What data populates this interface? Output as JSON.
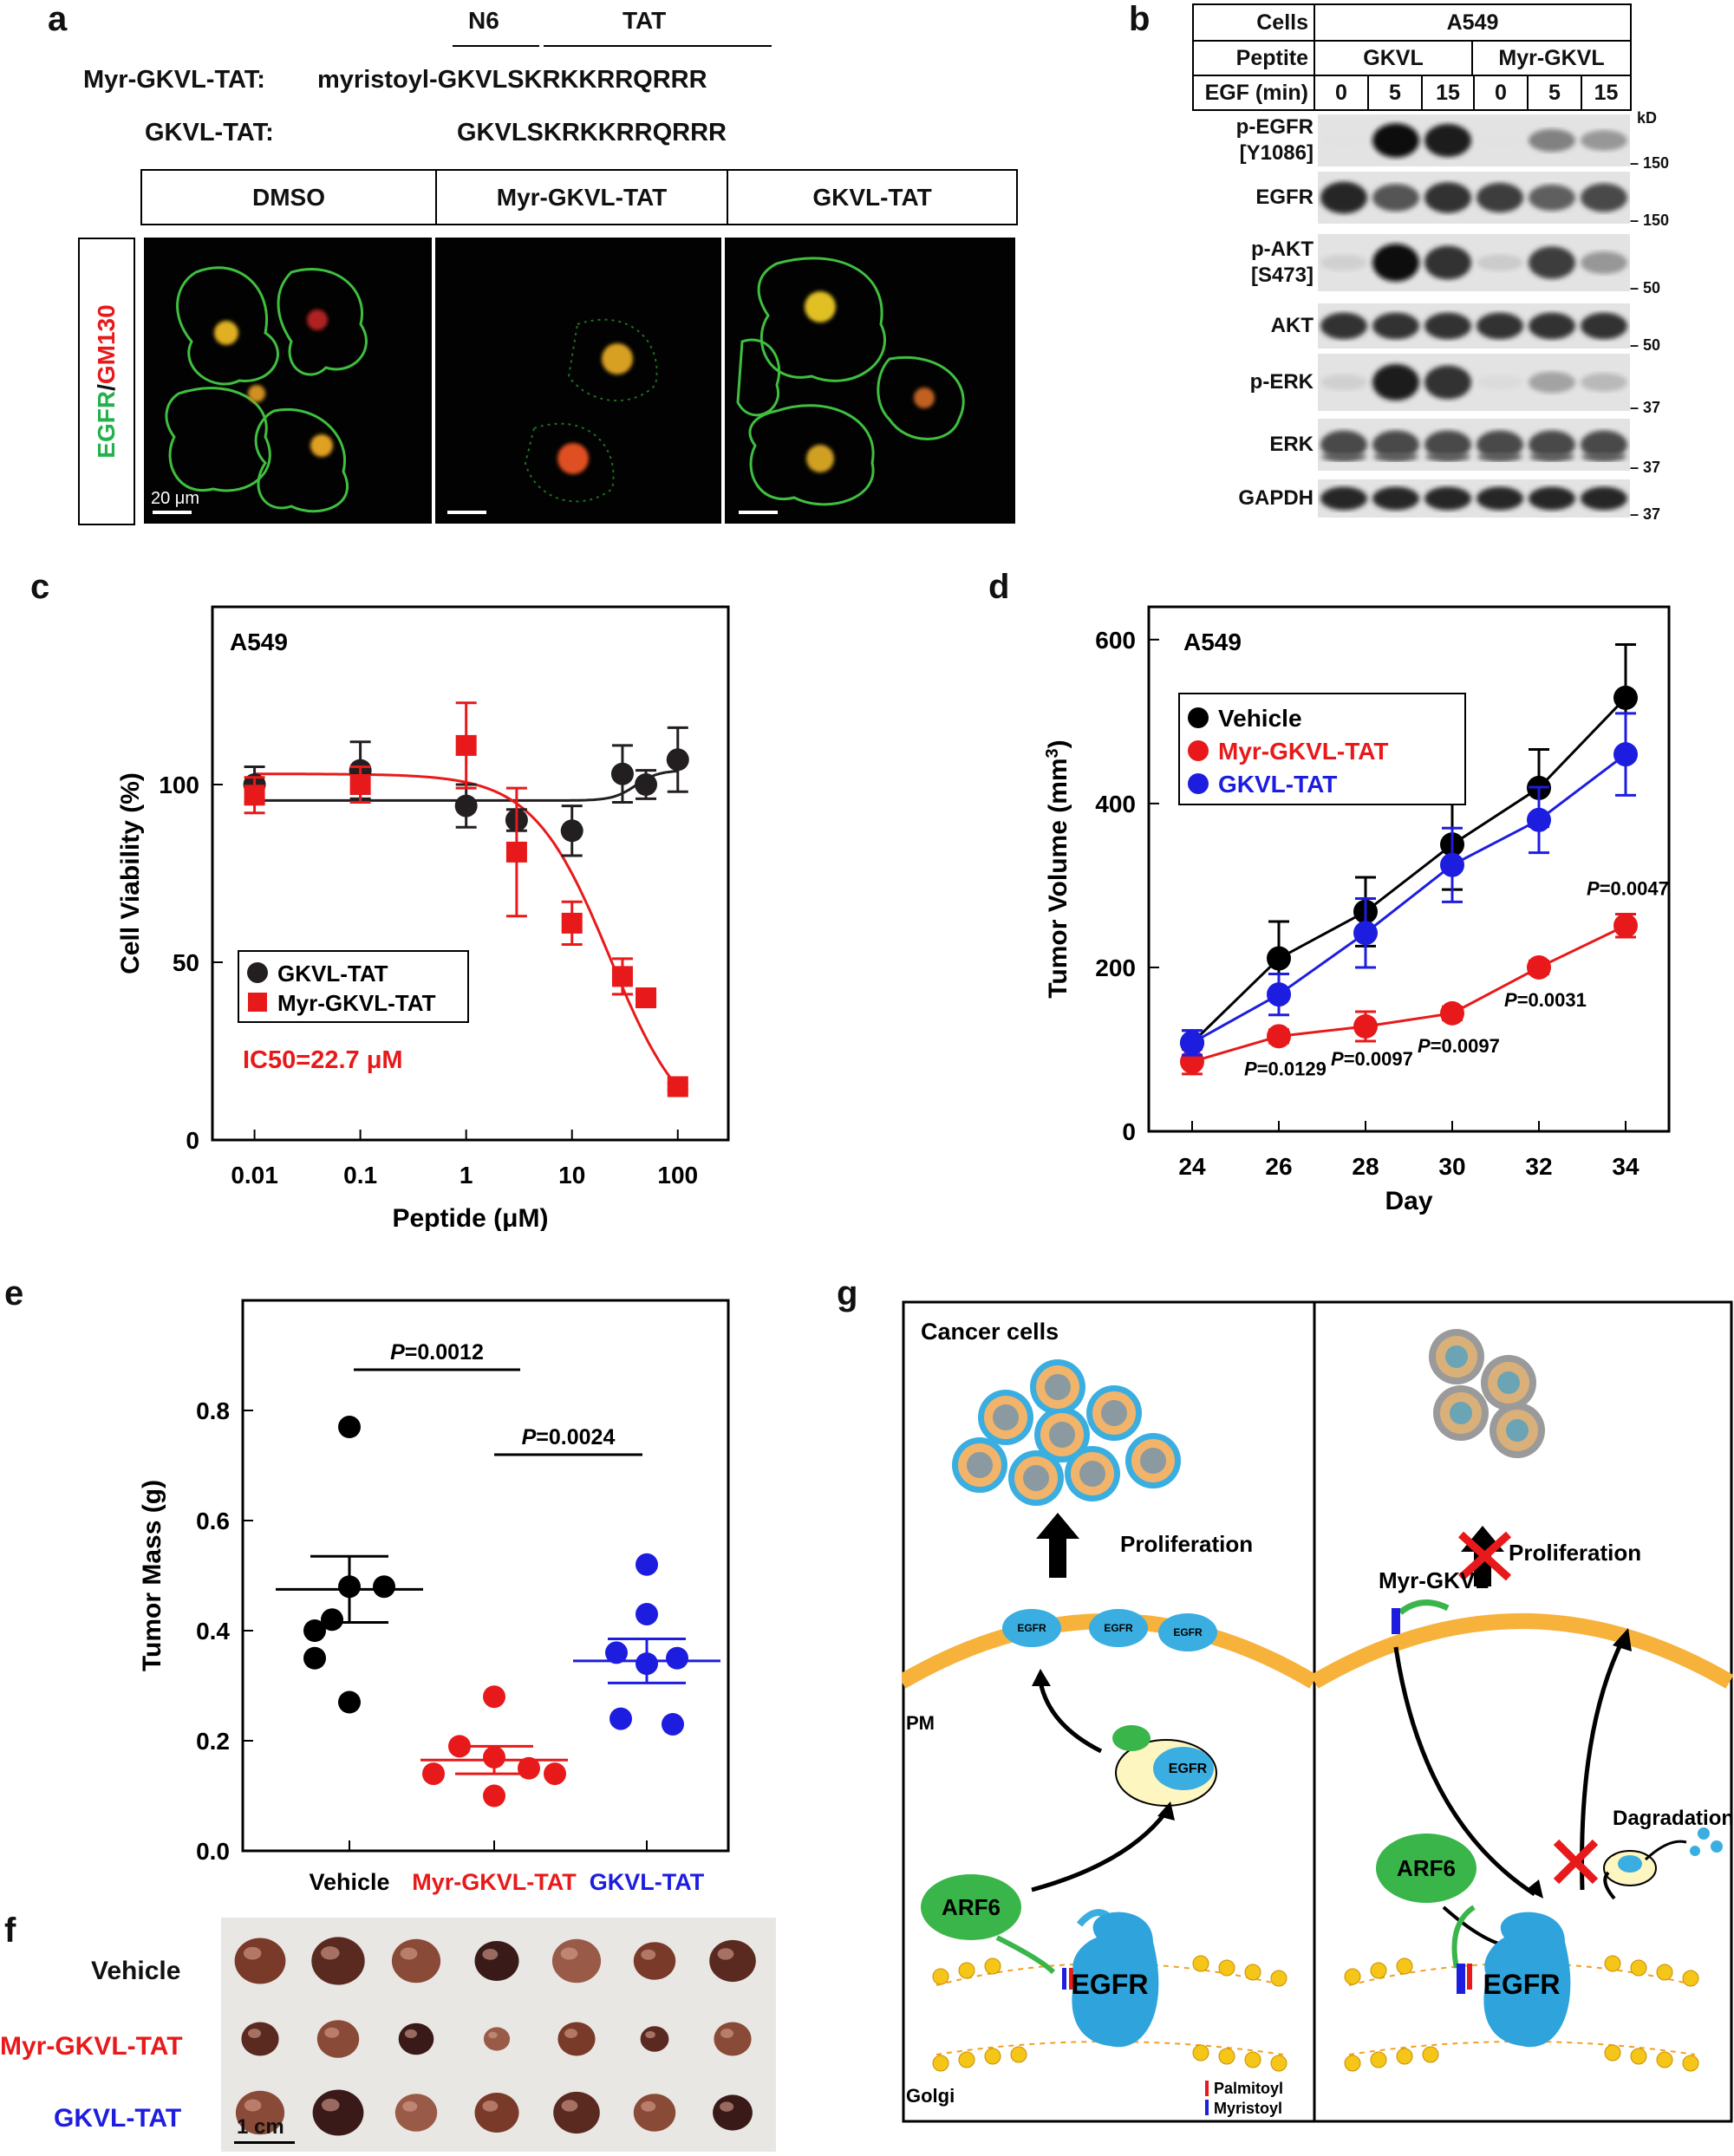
{
  "panels": {
    "a": "a",
    "b": "b",
    "c": "c",
    "d": "d",
    "e": "e",
    "f": "f",
    "g": "g"
  },
  "panel_a": {
    "header_n6": "N6",
    "header_tat": "TAT",
    "rows": [
      {
        "label": "Myr-GKVL-TAT:",
        "prefix": "myristoyl-",
        "n6": "GKVLS",
        "tat": "KRKKRRQRRR"
      },
      {
        "label": "GKVL-TAT:",
        "prefix": "",
        "n6": "GKVLS",
        "tat": "KRKKRRQRRR"
      }
    ],
    "columns": [
      "DMSO",
      "Myr-GKVL-TAT",
      "GKVL-TAT"
    ],
    "side_label_egfr": "EGFR",
    "side_label_slash": "/",
    "side_label_gm130": "GM130",
    "scale_bar": "20 μm"
  },
  "panel_b": {
    "row_cells_label": "Cells",
    "row_cells_value": "A549",
    "row_peptide_label": "Peptite",
    "peptides": [
      "GKVL",
      "Myr-GKVL"
    ],
    "row_egf_label": "EGF (min)",
    "egf_times": [
      "0",
      "5",
      "15",
      "0",
      "5",
      "15"
    ],
    "kd_label": "kD",
    "blots": [
      {
        "label": "p-EGFR [Y1086]",
        "marker": "150",
        "intensities": [
          0.02,
          0.95,
          0.9,
          0.02,
          0.45,
          0.35
        ]
      },
      {
        "label": "EGFR",
        "marker": "150",
        "intensities": [
          0.85,
          0.65,
          0.8,
          0.75,
          0.6,
          0.7
        ]
      },
      {
        "label": "p-AKT [S473]",
        "marker": "50",
        "intensities": [
          0.1,
          0.95,
          0.8,
          0.12,
          0.75,
          0.35
        ]
      },
      {
        "label": "AKT",
        "marker": "50",
        "intensities": [
          0.8,
          0.8,
          0.8,
          0.8,
          0.8,
          0.8
        ]
      },
      {
        "label": "p-ERK",
        "marker": "37",
        "intensities": [
          0.1,
          0.9,
          0.8,
          0.05,
          0.3,
          0.2
        ]
      },
      {
        "label": "ERK",
        "marker": "37",
        "intensities": [
          0.7,
          0.7,
          0.7,
          0.7,
          0.7,
          0.7
        ]
      },
      {
        "label": "GAPDH",
        "marker": "37",
        "intensities": [
          0.85,
          0.85,
          0.85,
          0.85,
          0.85,
          0.85
        ]
      }
    ]
  },
  "chart_data": [
    {
      "id": "c",
      "type": "scatter",
      "title": "A549",
      "xlabel": "Peptide (μM)",
      "ylabel": "Cell Viability (%)",
      "xscale": "log",
      "xlim": [
        0.004,
        300
      ],
      "ylim": [
        0,
        150
      ],
      "xticks": [
        0.01,
        0.1,
        1,
        10,
        100
      ],
      "xtick_labels": [
        "0.01",
        "0.1",
        "1",
        "10",
        "100"
      ],
      "yticks": [
        0,
        50,
        100
      ],
      "legend": "bottom-left",
      "annotation": "IC50=22.7 μM",
      "series": [
        {
          "name": "GKVL-TAT",
          "color": "#231f20",
          "marker": "circle",
          "x": [
            0.01,
            0.1,
            1,
            3,
            10,
            30,
            50,
            100
          ],
          "y": [
            100,
            104,
            94,
            90,
            87,
            103,
            100,
            107
          ],
          "err": [
            5,
            8,
            6,
            3,
            7,
            8,
            4,
            9
          ],
          "fit": "flat",
          "fit_params": {
            "bottom": 95.5,
            "top": 104,
            "ec50": 40
          }
        },
        {
          "name": "Myr-GKVL-TAT",
          "color": "#e8191a",
          "marker": "square",
          "x": [
            0.01,
            0.1,
            1,
            3,
            10,
            30,
            50,
            100
          ],
          "y": [
            97,
            100,
            111,
            81,
            61,
            46,
            40,
            15
          ],
          "err": [
            5,
            5,
            12,
            18,
            6,
            5,
            2,
            1
          ],
          "fit": "sigmoid",
          "fit_params": {
            "top": 103,
            "ic50": 22.7,
            "hill": 1.2
          }
        }
      ]
    },
    {
      "id": "d",
      "type": "line",
      "title": "A549",
      "xlabel": "Day",
      "ylabel": "Tumor Volume (mm",
      "ylabel_sup": "3",
      "ylabel_close": ")",
      "xlim": [
        23,
        35
      ],
      "ylim": [
        0,
        640
      ],
      "xticks": [
        24,
        26,
        28,
        30,
        32,
        34
      ],
      "yticks": [
        0,
        200,
        400,
        600
      ],
      "legend": "top-left",
      "series": [
        {
          "name": "Vehicle",
          "color": "#000000",
          "x": [
            24,
            26,
            28,
            30,
            32,
            34
          ],
          "y": [
            108,
            211,
            268,
            350,
            419,
            529
          ],
          "err": [
            15,
            45,
            42,
            55,
            47,
            65
          ]
        },
        {
          "name": "Myr-GKVL-TAT",
          "color": "#e8191a",
          "x": [
            24,
            26,
            28,
            30,
            32,
            34
          ],
          "y": [
            85,
            116,
            128,
            144,
            200,
            251
          ],
          "err": [
            15,
            8,
            18,
            8,
            8,
            14
          ]
        },
        {
          "name": "GKVL-TAT",
          "color": "#1d1de0",
          "x": [
            24,
            26,
            28,
            30,
            32,
            34
          ],
          "y": [
            108,
            167,
            242,
            325,
            380,
            460
          ],
          "err": [
            15,
            25,
            42,
            45,
            40,
            50
          ]
        }
      ],
      "pvalues": [
        {
          "day": 26,
          "label": "=0.0129"
        },
        {
          "day": 28,
          "label": "=0.0097"
        },
        {
          "day": 30,
          "label": "=0.0097"
        },
        {
          "day": 32,
          "label": "=0.0031"
        },
        {
          "day": 34,
          "label": "=0.0047"
        }
      ]
    },
    {
      "id": "e",
      "type": "scatter",
      "xlabel": "",
      "ylabel": "Tumor Mass (g)",
      "ylim": [
        0,
        1.0
      ],
      "yticks": [
        0.0,
        0.2,
        0.4,
        0.6,
        0.8
      ],
      "ytick_labels": [
        "0.0",
        "0.2",
        "0.4",
        "0.6",
        "0.8"
      ],
      "categories": [
        "Vehicle",
        "Myr-GKVL-TAT",
        "GKVL-TAT"
      ],
      "colors": [
        "#000000",
        "#e8191a",
        "#1d1de0"
      ],
      "points": [
        [
          0.77,
          0.4,
          0.48,
          0.48,
          0.42,
          0.35,
          0.27
        ],
        [
          0.28,
          0.19,
          0.17,
          0.15,
          0.14,
          0.14,
          0.1
        ],
        [
          0.52,
          0.43,
          0.36,
          0.35,
          0.34,
          0.24,
          0.23
        ]
      ],
      "means": [
        0.475,
        0.165,
        0.345
      ],
      "sems": [
        0.06,
        0.025,
        0.04
      ],
      "comparisons": [
        {
          "from": 0,
          "to": 1,
          "label": "=0.0012"
        },
        {
          "from": 1,
          "to": 2,
          "label": "=0.0024"
        }
      ]
    }
  ],
  "panel_f": {
    "rows": [
      "Vehicle",
      "Myr-GKVL-TAT",
      "GKVL-TAT"
    ],
    "scale": "1 cm",
    "tumor_sizes": [
      [
        0.9,
        0.95,
        0.85,
        0.75,
        0.85,
        0.7,
        0.8
      ],
      [
        0.6,
        0.7,
        0.55,
        0.35,
        0.6,
        0.4,
        0.6
      ],
      [
        0.85,
        0.9,
        0.7,
        0.75,
        0.8,
        0.7,
        0.65
      ]
    ]
  },
  "panel_g": {
    "title": "Cancer cells",
    "proliferation": "Proliferation",
    "pm": "PM",
    "golgi": "Golgi",
    "egfr": "EGFR",
    "arf6": "ARF6",
    "myr_gkvl": "Myr-GKVL",
    "degradation": "Dagradation",
    "legend_palmitoyl": "Palmitoyl",
    "legend_myristoyl": "Myristoyl"
  },
  "colors": {
    "red": "#e8191a",
    "blue": "#1d1de0",
    "cyan": "#2ea3dc",
    "green": "#39b54a",
    "orange": "#f7b23b",
    "yellow": "#f5c518"
  }
}
